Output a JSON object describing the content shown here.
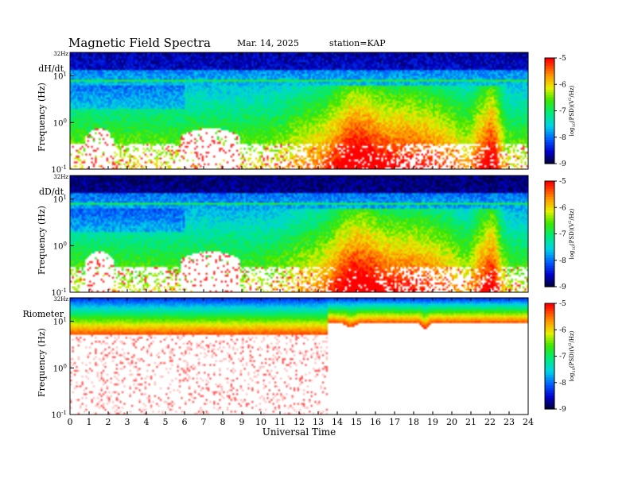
{
  "header": {
    "title": "Magnetic  Field  Spectra",
    "date": "Mar. 14, 2025",
    "station": "station=KAP"
  },
  "colors": {
    "background": "#ffffff",
    "spectrum_low": "#000060",
    "spectrum_high": "#ff0000"
  },
  "chart_data": [
    {
      "type": "heatmap",
      "panel_label": "dH/dt",
      "xlabel": "",
      "ylabel": "Frequency  (Hz)",
      "y_scale": "log",
      "ylim_hz": [
        0.1,
        32
      ],
      "yticks": [
        {
          "label_base": "10",
          "label_exp": "-1",
          "value": 0.1
        },
        {
          "label_base": "10",
          "label_exp": "0",
          "value": 1
        },
        {
          "label_base": "10",
          "label_exp": "1",
          "value": 10
        }
      ],
      "top_label": "32Hz",
      "xlim": [
        0,
        24
      ],
      "colorbar": {
        "label": "log10(PSD)(V^2/Hz)",
        "label_parts": [
          "log",
          "10",
          "(PSD)(V",
          "2",
          "/Hz)"
        ],
        "range": [
          -9,
          -5
        ],
        "ticks": [
          "-5",
          "-6",
          "-7",
          "-8",
          "-9"
        ]
      },
      "features": {
        "narrowband_line_hz": 8,
        "background_log_psd": -7.2,
        "high_freq_log_psd": -8.6,
        "low_freq_mask_blocks_ut": [
          [
            0.8,
            2.3
          ],
          [
            5.8,
            8.9
          ]
        ],
        "high_activity_ut": [
          [
            13.5,
            16.5
          ],
          [
            21.5,
            22.8
          ]
        ]
      }
    },
    {
      "type": "heatmap",
      "panel_label": "dD/dt",
      "xlabel": "",
      "ylabel": "Frequency  (Hz)",
      "y_scale": "log",
      "ylim_hz": [
        0.1,
        32
      ],
      "yticks": [
        {
          "label_base": "10",
          "label_exp": "-1",
          "value": 0.1
        },
        {
          "label_base": "10",
          "label_exp": "0",
          "value": 1
        },
        {
          "label_base": "10",
          "label_exp": "1",
          "value": 10
        }
      ],
      "top_label": "32Hz",
      "xlim": [
        0,
        24
      ],
      "colorbar": {
        "label": "log10(PSD)(V^2/Hz)",
        "label_parts": [
          "log",
          "10",
          "(PSD)(V",
          "2",
          "/Hz)"
        ],
        "range": [
          -9,
          -5
        ],
        "ticks": [
          "-5",
          "-6",
          "-7",
          "-8",
          "-9"
        ]
      },
      "features": {
        "narrowband_line_hz": 8,
        "background_log_psd": -7.3,
        "high_freq_log_psd": -8.8,
        "low_freq_mask_blocks_ut": [
          [
            0.8,
            2.3
          ],
          [
            5.8,
            8.9
          ]
        ],
        "high_activity_ut": [
          [
            14.0,
            16.0
          ],
          [
            21.7,
            22.4
          ]
        ]
      }
    },
    {
      "type": "heatmap",
      "panel_label": "Riometer",
      "xlabel": "Universal  Time",
      "ylabel": "Frequency  (Hz)",
      "y_scale": "log",
      "ylim_hz": [
        0.1,
        32
      ],
      "yticks": [
        {
          "label_base": "10",
          "label_exp": "-1",
          "value": 0.1
        },
        {
          "label_base": "10",
          "label_exp": "0",
          "value": 1
        },
        {
          "label_base": "10",
          "label_exp": "1",
          "value": 10
        }
      ],
      "top_label": "32Hz",
      "xlim": [
        0,
        24
      ],
      "xticks": [
        "0",
        "1",
        "2",
        "3",
        "4",
        "5",
        "6",
        "7",
        "8",
        "9",
        "10",
        "11",
        "12",
        "13",
        "14",
        "15",
        "16",
        "17",
        "18",
        "19",
        "20",
        "21",
        "22",
        "23",
        "24"
      ],
      "colorbar": {
        "label": "log10(PSD)(V^2/Hz)",
        "label_parts": [
          "log",
          "10",
          "(PSD)(V",
          "2",
          "/Hz)"
        ],
        "range": [
          -9,
          -5
        ],
        "ticks": [
          "-5",
          "-6",
          "-7",
          "-8",
          "-9"
        ]
      },
      "features": {
        "band_bottom_hz_before_13_5": 5,
        "band_bottom_hz_after_13_5": 9,
        "background_log_psd": -5.2,
        "high_freq_log_psd": -7.6
      }
    }
  ]
}
